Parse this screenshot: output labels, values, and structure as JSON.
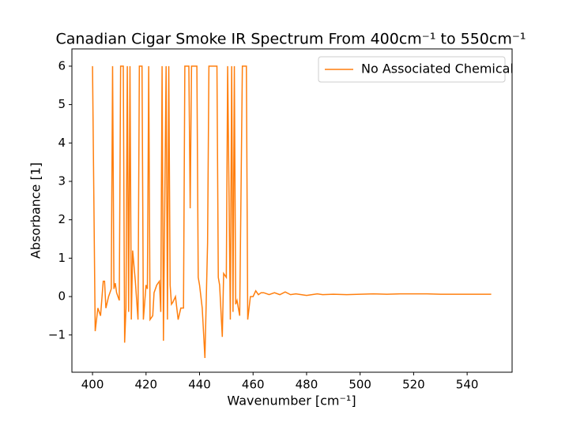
{
  "chart_data": {
    "type": "line",
    "title": "Canadian Cigar Smoke IR Spectrum From 400cm⁻¹ to 550cm⁻¹",
    "x_label": "Wavenumber [cm⁻¹]",
    "y_label": "Absorbance [1]",
    "x": [
      400,
      401,
      402,
      403,
      404,
      404.5,
      405,
      406,
      407,
      407.5,
      408,
      408.5,
      409,
      410,
      410.5,
      411.5,
      412,
      412.5,
      413,
      413.5,
      414,
      414.5,
      415,
      416,
      417,
      417.5,
      418.5,
      419,
      420,
      420.5,
      421,
      421.5,
      422.5,
      423,
      424,
      425,
      425.5,
      426,
      426.5,
      427.5,
      428,
      428.5,
      429,
      429.5,
      430,
      431,
      432,
      433,
      434,
      434.5,
      436,
      436.5,
      437,
      439,
      439.5,
      440,
      441,
      442,
      443,
      443.5,
      446.5,
      447,
      447.5,
      448.5,
      449,
      450,
      450.5,
      451.5,
      452,
      452.5,
      453,
      453.5,
      454,
      455,
      456,
      457.5,
      458,
      459,
      460,
      461,
      462,
      463,
      464,
      466,
      468,
      470,
      472,
      474,
      476,
      478,
      480,
      482,
      484,
      486,
      490,
      495,
      500,
      505,
      510,
      515,
      520,
      525,
      530,
      535,
      540,
      545,
      549
    ],
    "series": [
      {
        "name": "No Associated Chemical",
        "color": "#ff7f0e",
        "values": [
          6,
          -0.9,
          -0.3,
          -0.5,
          0.4,
          0.4,
          -0.3,
          0.0,
          0.2,
          6,
          0.2,
          0.35,
          0.1,
          -0.1,
          6,
          6,
          -1.2,
          -0.3,
          6,
          -0.4,
          6,
          -0.6,
          1.2,
          0.4,
          -0.6,
          6,
          6,
          -0.6,
          0.3,
          0.2,
          6,
          -0.6,
          -0.5,
          0.1,
          0.3,
          0.4,
          -0.4,
          6,
          -1.15,
          6,
          -0.6,
          6,
          0.3,
          -0.2,
          -0.15,
          0,
          -0.6,
          -0.3,
          -0.3,
          6,
          6,
          2.3,
          6,
          6,
          0.5,
          0.3,
          -0.3,
          -1.6,
          1.4,
          6,
          6,
          0.5,
          0.3,
          -1.05,
          0.6,
          0.5,
          6,
          -0.6,
          6,
          -0.4,
          6,
          -0.2,
          -0.1,
          -0.5,
          6,
          6,
          -0.6,
          0,
          0,
          0.15,
          0.05,
          0.1,
          0.1,
          0.05,
          0.1,
          0.05,
          0.12,
          0.05,
          0.07,
          0.05,
          0.03,
          0.05,
          0.07,
          0.05,
          0.06,
          0.05,
          0.06,
          0.07,
          0.06,
          0.07,
          0.07,
          0.07,
          0.06,
          0.06,
          0.06,
          0.06,
          0.06
        ]
      }
    ],
    "xlim": [
      392.3,
      556.8
    ],
    "xticks": [
      400,
      420,
      440,
      460,
      480,
      500,
      520,
      540
    ],
    "ylim": [
      -1.97,
      6.45
    ],
    "yticks": [
      {
        "value": -1,
        "label": "−1"
      },
      0,
      1,
      2,
      3,
      4,
      5,
      6
    ],
    "legend": "upper right"
  }
}
